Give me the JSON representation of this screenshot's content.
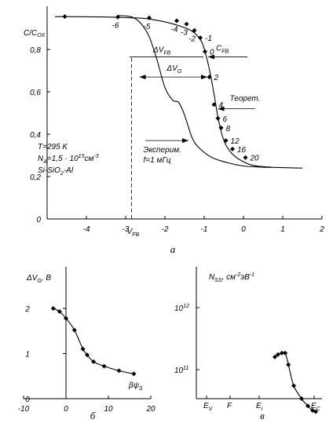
{
  "chart_data": [
    {
      "id": "a",
      "type": "line",
      "caption": "а",
      "ylabel": "C/COX",
      "xlabel": "VFB",
      "xlim": [
        -5,
        2
      ],
      "ylim": [
        0,
        1.0
      ],
      "xticks": [
        "-4",
        "-3",
        "-2",
        "-1",
        "0",
        "1",
        "2"
      ],
      "yticks": [
        "0",
        "0,2",
        "0,4",
        "0,6",
        "0,8"
      ],
      "series": [
        {
          "name": "Теорет.",
          "points": [
            [
              -4.8,
              0.955
            ],
            [
              -4.5,
              0.955
            ],
            [
              -3.5,
              0.953
            ],
            [
              -3.0,
              0.95
            ],
            [
              -2.5,
              0.946
            ],
            [
              -2.0,
              0.93
            ],
            [
              -1.7,
              0.915
            ],
            [
              -1.4,
              0.895
            ],
            [
              -1.2,
              0.87
            ],
            [
              -1.05,
              0.83
            ],
            [
              -0.95,
              0.77
            ],
            [
              -0.85,
              0.69
            ],
            [
              -0.75,
              0.59
            ],
            [
              -0.65,
              0.48
            ],
            [
              -0.55,
              0.4
            ],
            [
              -0.45,
              0.35
            ],
            [
              -0.3,
              0.31
            ],
            [
              -0.1,
              0.28
            ],
            [
              0.2,
              0.255
            ],
            [
              0.6,
              0.245
            ],
            [
              1.5,
              0.24
            ]
          ]
        },
        {
          "name": "Эксперим.",
          "points": [
            [
              -3.2,
              0.96
            ],
            [
              -3.0,
              0.958
            ],
            [
              -2.8,
              0.95
            ],
            [
              -2.6,
              0.92
            ],
            [
              -2.4,
              0.86
            ],
            [
              -2.2,
              0.75
            ],
            [
              -2.0,
              0.62
            ],
            [
              -1.8,
              0.56
            ],
            [
              -1.65,
              0.55
            ],
            [
              -1.5,
              0.49
            ],
            [
              -1.3,
              0.38
            ],
            [
              -1.1,
              0.33
            ],
            [
              -0.8,
              0.29
            ],
            [
              -0.4,
              0.265
            ],
            [
              0.0,
              0.25
            ],
            [
              0.4,
              0.245
            ],
            [
              0.7,
              0.243
            ]
          ]
        }
      ],
      "markers": [
        {
          "x": -4.55,
          "y": 0.955,
          "label": ""
        },
        {
          "x": -3.2,
          "y": 0.953,
          "label": "-6"
        },
        {
          "x": -2.4,
          "y": 0.949,
          "label": "-5"
        },
        {
          "x": -1.7,
          "y": 0.935,
          "label": "-4"
        },
        {
          "x": -1.45,
          "y": 0.92,
          "label": "-3"
        },
        {
          "x": -1.25,
          "y": 0.89,
          "label": "-2"
        },
        {
          "x": -1.1,
          "y": 0.855,
          "label": "-1"
        },
        {
          "x": -0.98,
          "y": 0.79,
          "label": "0"
        },
        {
          "x": -0.87,
          "y": 0.67,
          "label": "2"
        },
        {
          "x": -0.75,
          "y": 0.54,
          "label": "4"
        },
        {
          "x": -0.65,
          "y": 0.475,
          "label": "6"
        },
        {
          "x": -0.57,
          "y": 0.43,
          "label": "8"
        },
        {
          "x": -0.45,
          "y": 0.37,
          "label": "12"
        },
        {
          "x": -0.28,
          "y": 0.33,
          "label": "16"
        },
        {
          "x": 0.05,
          "y": 0.29,
          "label": "20"
        }
      ],
      "annotations": {
        "dvfb": "ΔVFB",
        "dvg": "ΔVG",
        "cfb": "CFB",
        "theor": "Теорет.",
        "exper": "Эксперим.",
        "freq": "f=1 мГц",
        "temp": "T=295 K",
        "na": "NA=1,5 · 10¹⁵см⁻³",
        "struct": "Si-SiO2-Al"
      }
    },
    {
      "id": "b",
      "type": "line",
      "caption": "б",
      "ylabel": "ΔVG, B",
      "xlabel": "βψS",
      "xlim": [
        -10,
        20
      ],
      "ylim": [
        0,
        2.6
      ],
      "xticks": [
        "-10",
        "0",
        "10",
        "20"
      ],
      "yticks": [
        "0",
        "1",
        "2"
      ],
      "points": [
        [
          -3,
          2.0
        ],
        [
          -1.5,
          1.93
        ],
        [
          0,
          1.78
        ],
        [
          2,
          1.52
        ],
        [
          4,
          1.1
        ],
        [
          5,
          0.97
        ],
        [
          6.5,
          0.82
        ],
        [
          9,
          0.72
        ],
        [
          12.5,
          0.62
        ],
        [
          16,
          0.55
        ]
      ]
    },
    {
      "id": "c",
      "type": "line",
      "caption": "в",
      "ylabel": "NSS, см⁻²эВ⁻¹",
      "xticks": [
        "EV",
        "F",
        "Ei",
        "EC"
      ],
      "yticks": [
        "10¹²",
        "10¹¹"
      ],
      "points": [
        [
          0.275,
          1.6
        ],
        [
          0.285,
          1.75
        ],
        [
          0.297,
          1.85
        ],
        [
          0.308,
          1.85
        ],
        [
          0.318,
          1.2
        ],
        [
          0.335,
          0.55
        ],
        [
          0.36,
          0.34
        ],
        [
          0.38,
          0.26
        ],
        [
          0.395,
          0.22
        ],
        [
          0.405,
          0.21
        ]
      ]
    }
  ]
}
